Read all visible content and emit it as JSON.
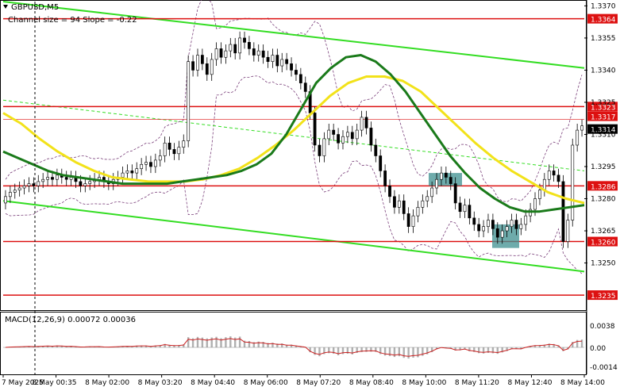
{
  "header": {
    "symbol": "GBPUSD,M5",
    "channel_info": "Channel size = 94 Slope = -0.22"
  },
  "macd": {
    "label": "MACD(12,26,9) 0.00072 0.00036",
    "ticks": [
      "0.0038",
      "0.00",
      "-0.0014"
    ]
  },
  "colors": {
    "background": "#ffffff",
    "candle": "#000000",
    "ma_fast": "#1a7a1a",
    "ma_slow": "#f2e21a",
    "channel": "#33dd22",
    "level_line": "#dd1111",
    "zone": "#3d8f8f",
    "bollinger": "#7a3f7a",
    "macd_hist": "#b0b0b0",
    "macd_signal": "#cc2222"
  },
  "chart_data": {
    "type": "candlestick",
    "title": "GBPUSD,M5",
    "ylim": [
      1.3228,
      1.3372
    ],
    "y_ticks": [
      {
        "label": "1.3370",
        "value": 1.337
      },
      {
        "label": "1.3355",
        "value": 1.3355
      },
      {
        "label": "1.3340",
        "value": 1.334
      },
      {
        "label": "1.3325",
        "value": 1.3325
      },
      {
        "label": "1.3310",
        "value": 1.331
      },
      {
        "label": "1.3295",
        "value": 1.3295
      },
      {
        "label": "1.3280",
        "value": 1.328
      },
      {
        "label": "1.3265",
        "value": 1.3265
      },
      {
        "label": "1.3250",
        "value": 1.325
      }
    ],
    "x_ticks": [
      "7 May 2025",
      "8 May 00:35",
      "8 May 02:00",
      "8 May 03:20",
      "8 May 04:40",
      "8 May 06:00",
      "8 May 07:20",
      "8 May 08:40",
      "8 May 10:00",
      "8 May 11:20",
      "8 May 12:40",
      "8 May 14:00"
    ],
    "levels": [
      {
        "label": "1.3364",
        "value": 1.3364
      },
      {
        "label": "1.3323",
        "value": 1.3323
      },
      {
        "label": "1.3286",
        "value": 1.3286
      },
      {
        "label": "1.3260",
        "value": 1.326
      },
      {
        "label": "1.3235",
        "value": 1.3235
      }
    ],
    "price_labels": [
      {
        "label": "1.3317",
        "value": 1.3317
      },
      {
        "label": "1.3314",
        "value": 1.3314
      }
    ],
    "series": [
      {
        "close": [
          1.3281,
          1.3283,
          1.3284,
          1.3285,
          1.3286,
          1.3287,
          1.3286,
          1.3288,
          1.3289,
          1.329,
          1.3289,
          1.3291,
          1.329,
          1.3289,
          1.329,
          1.3288,
          1.3286,
          1.3287,
          1.3288,
          1.3289,
          1.329,
          1.3288,
          1.3287,
          1.3289,
          1.329,
          1.3292,
          1.3293,
          1.3292,
          1.3294,
          1.3296,
          1.3297,
          1.3295,
          1.3298,
          1.33,
          1.3306,
          1.3303,
          1.3301,
          1.3304,
          1.3307,
          1.3344,
          1.334,
          1.3347,
          1.3343,
          1.3338,
          1.3345,
          1.335,
          1.3346,
          1.3349,
          1.3352,
          1.3348,
          1.3355,
          1.3353,
          1.335,
          1.3347,
          1.3349,
          1.3346,
          1.3344,
          1.3347,
          1.3342,
          1.3345,
          1.3343,
          1.334,
          1.3338,
          1.3334,
          1.333,
          1.332,
          1.3305,
          1.33,
          1.3308,
          1.3312,
          1.331,
          1.3306,
          1.3309,
          1.3311,
          1.3308,
          1.3312,
          1.3318,
          1.3313,
          1.3305,
          1.33,
          1.3293,
          1.3286,
          1.3281,
          1.3276,
          1.3279,
          1.3273,
          1.3267,
          1.3272,
          1.3276,
          1.3279,
          1.3281,
          1.3285,
          1.3289,
          1.3292,
          1.329,
          1.3287,
          1.3278,
          1.3274,
          1.3277,
          1.3271,
          1.3268,
          1.3265,
          1.3267,
          1.327,
          1.3266,
          1.3262,
          1.3265,
          1.3267,
          1.327,
          1.3266,
          1.3268,
          1.3272,
          1.3275,
          1.328,
          1.3284,
          1.3289,
          1.3293,
          1.3291,
          1.3288,
          1.326,
          1.327,
          1.3305,
          1.3312,
          1.3314
        ]
      },
      {
        "name": "",
        "ma_fast": [
          1.3302,
          1.3299,
          1.3296,
          1.3293,
          1.3291,
          1.329,
          1.3289,
          1.3288,
          1.3287,
          1.3287,
          1.3287,
          1.3287,
          1.3288,
          1.3289,
          1.329,
          1.3291,
          1.3293,
          1.3296,
          1.3301,
          1.331,
          1.3322,
          1.3334,
          1.3341,
          1.3346,
          1.3347,
          1.3344,
          1.3338,
          1.333,
          1.332,
          1.331,
          1.33,
          1.3292,
          1.3285,
          1.328,
          1.3276,
          1.3274,
          1.3274,
          1.3275,
          1.3276,
          1.3277
        ]
      },
      {
        "name": "",
        "ma_slow": [
          1.332,
          1.3315,
          1.3308,
          1.3302,
          1.3297,
          1.3293,
          1.329,
          1.3289,
          1.3288,
          1.3288,
          1.3288,
          1.3289,
          1.3291,
          1.3294,
          1.3299,
          1.3305,
          1.3312,
          1.332,
          1.3328,
          1.3334,
          1.3337,
          1.3337,
          1.3335,
          1.333,
          1.3322,
          1.3314,
          1.3306,
          1.3299,
          1.3293,
          1.3288,
          1.3283,
          1.328,
          1.3278
        ]
      }
    ]
  }
}
